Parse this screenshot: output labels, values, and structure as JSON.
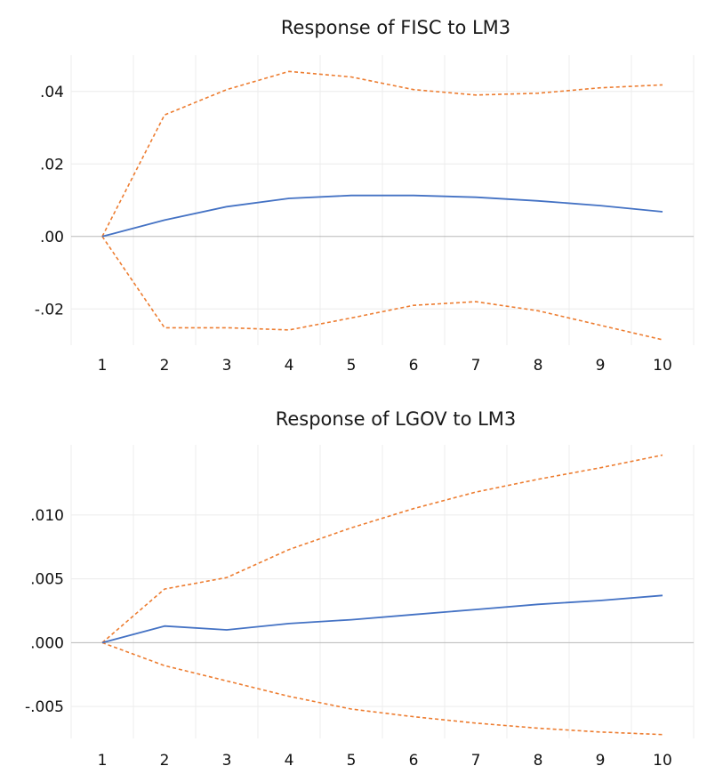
{
  "colors": {
    "response": "#4472c4",
    "band": "#ed7d31",
    "grid": "#ececec",
    "zero_line": "#b8b8b8"
  },
  "chart_data": [
    {
      "type": "line",
      "title": "Response of FISC to LM3",
      "x": [
        1,
        2,
        3,
        4,
        5,
        6,
        7,
        8,
        9,
        10
      ],
      "ylim": [
        -0.03,
        0.05
      ],
      "yticks": [
        -0.02,
        0.0,
        0.02,
        0.04
      ],
      "ytick_labels": [
        "-.02",
        ".00",
        ".02",
        ".04"
      ],
      "xtick_labels": [
        "1",
        "2",
        "3",
        "4",
        "5",
        "6",
        "7",
        "8",
        "9",
        "10"
      ],
      "grid": true,
      "series": [
        {
          "role": "response",
          "style": "solid",
          "values": [
            0.0,
            0.0045,
            0.0082,
            0.0105,
            0.0113,
            0.0113,
            0.0108,
            0.0098,
            0.0085,
            0.0068
          ]
        },
        {
          "role": "upper",
          "style": "dashed",
          "values": [
            0.0,
            0.0335,
            0.0405,
            0.0455,
            0.044,
            0.0405,
            0.039,
            0.0395,
            0.041,
            0.0418
          ]
        },
        {
          "role": "lower",
          "style": "dashed",
          "values": [
            0.0,
            -0.0252,
            -0.0252,
            -0.0258,
            -0.0225,
            -0.019,
            -0.018,
            -0.0205,
            -0.0245,
            -0.0285
          ]
        }
      ]
    },
    {
      "type": "line",
      "title": "Response of LGOV to LM3",
      "x": [
        1,
        2,
        3,
        4,
        5,
        6,
        7,
        8,
        9,
        10
      ],
      "ylim": [
        -0.0075,
        0.0155
      ],
      "yticks": [
        -0.005,
        0.0,
        0.005,
        0.01
      ],
      "ytick_labels": [
        "-.005",
        ".000",
        ".005",
        ".010"
      ],
      "xtick_labels": [
        "1",
        "2",
        "3",
        "4",
        "5",
        "6",
        "7",
        "8",
        "9",
        "10"
      ],
      "grid": true,
      "series": [
        {
          "role": "response",
          "style": "solid",
          "values": [
            0.0,
            0.0013,
            0.001,
            0.0015,
            0.0018,
            0.0022,
            0.0026,
            0.003,
            0.0033,
            0.0037
          ]
        },
        {
          "role": "upper",
          "style": "dashed",
          "values": [
            0.0,
            0.0042,
            0.0051,
            0.0073,
            0.009,
            0.0105,
            0.0118,
            0.0128,
            0.0137,
            0.0147
          ]
        },
        {
          "role": "lower",
          "style": "dashed",
          "values": [
            0.0,
            -0.0018,
            -0.003,
            -0.0042,
            -0.0052,
            -0.0058,
            -0.0063,
            -0.0067,
            -0.007,
            -0.0072
          ]
        }
      ]
    }
  ]
}
